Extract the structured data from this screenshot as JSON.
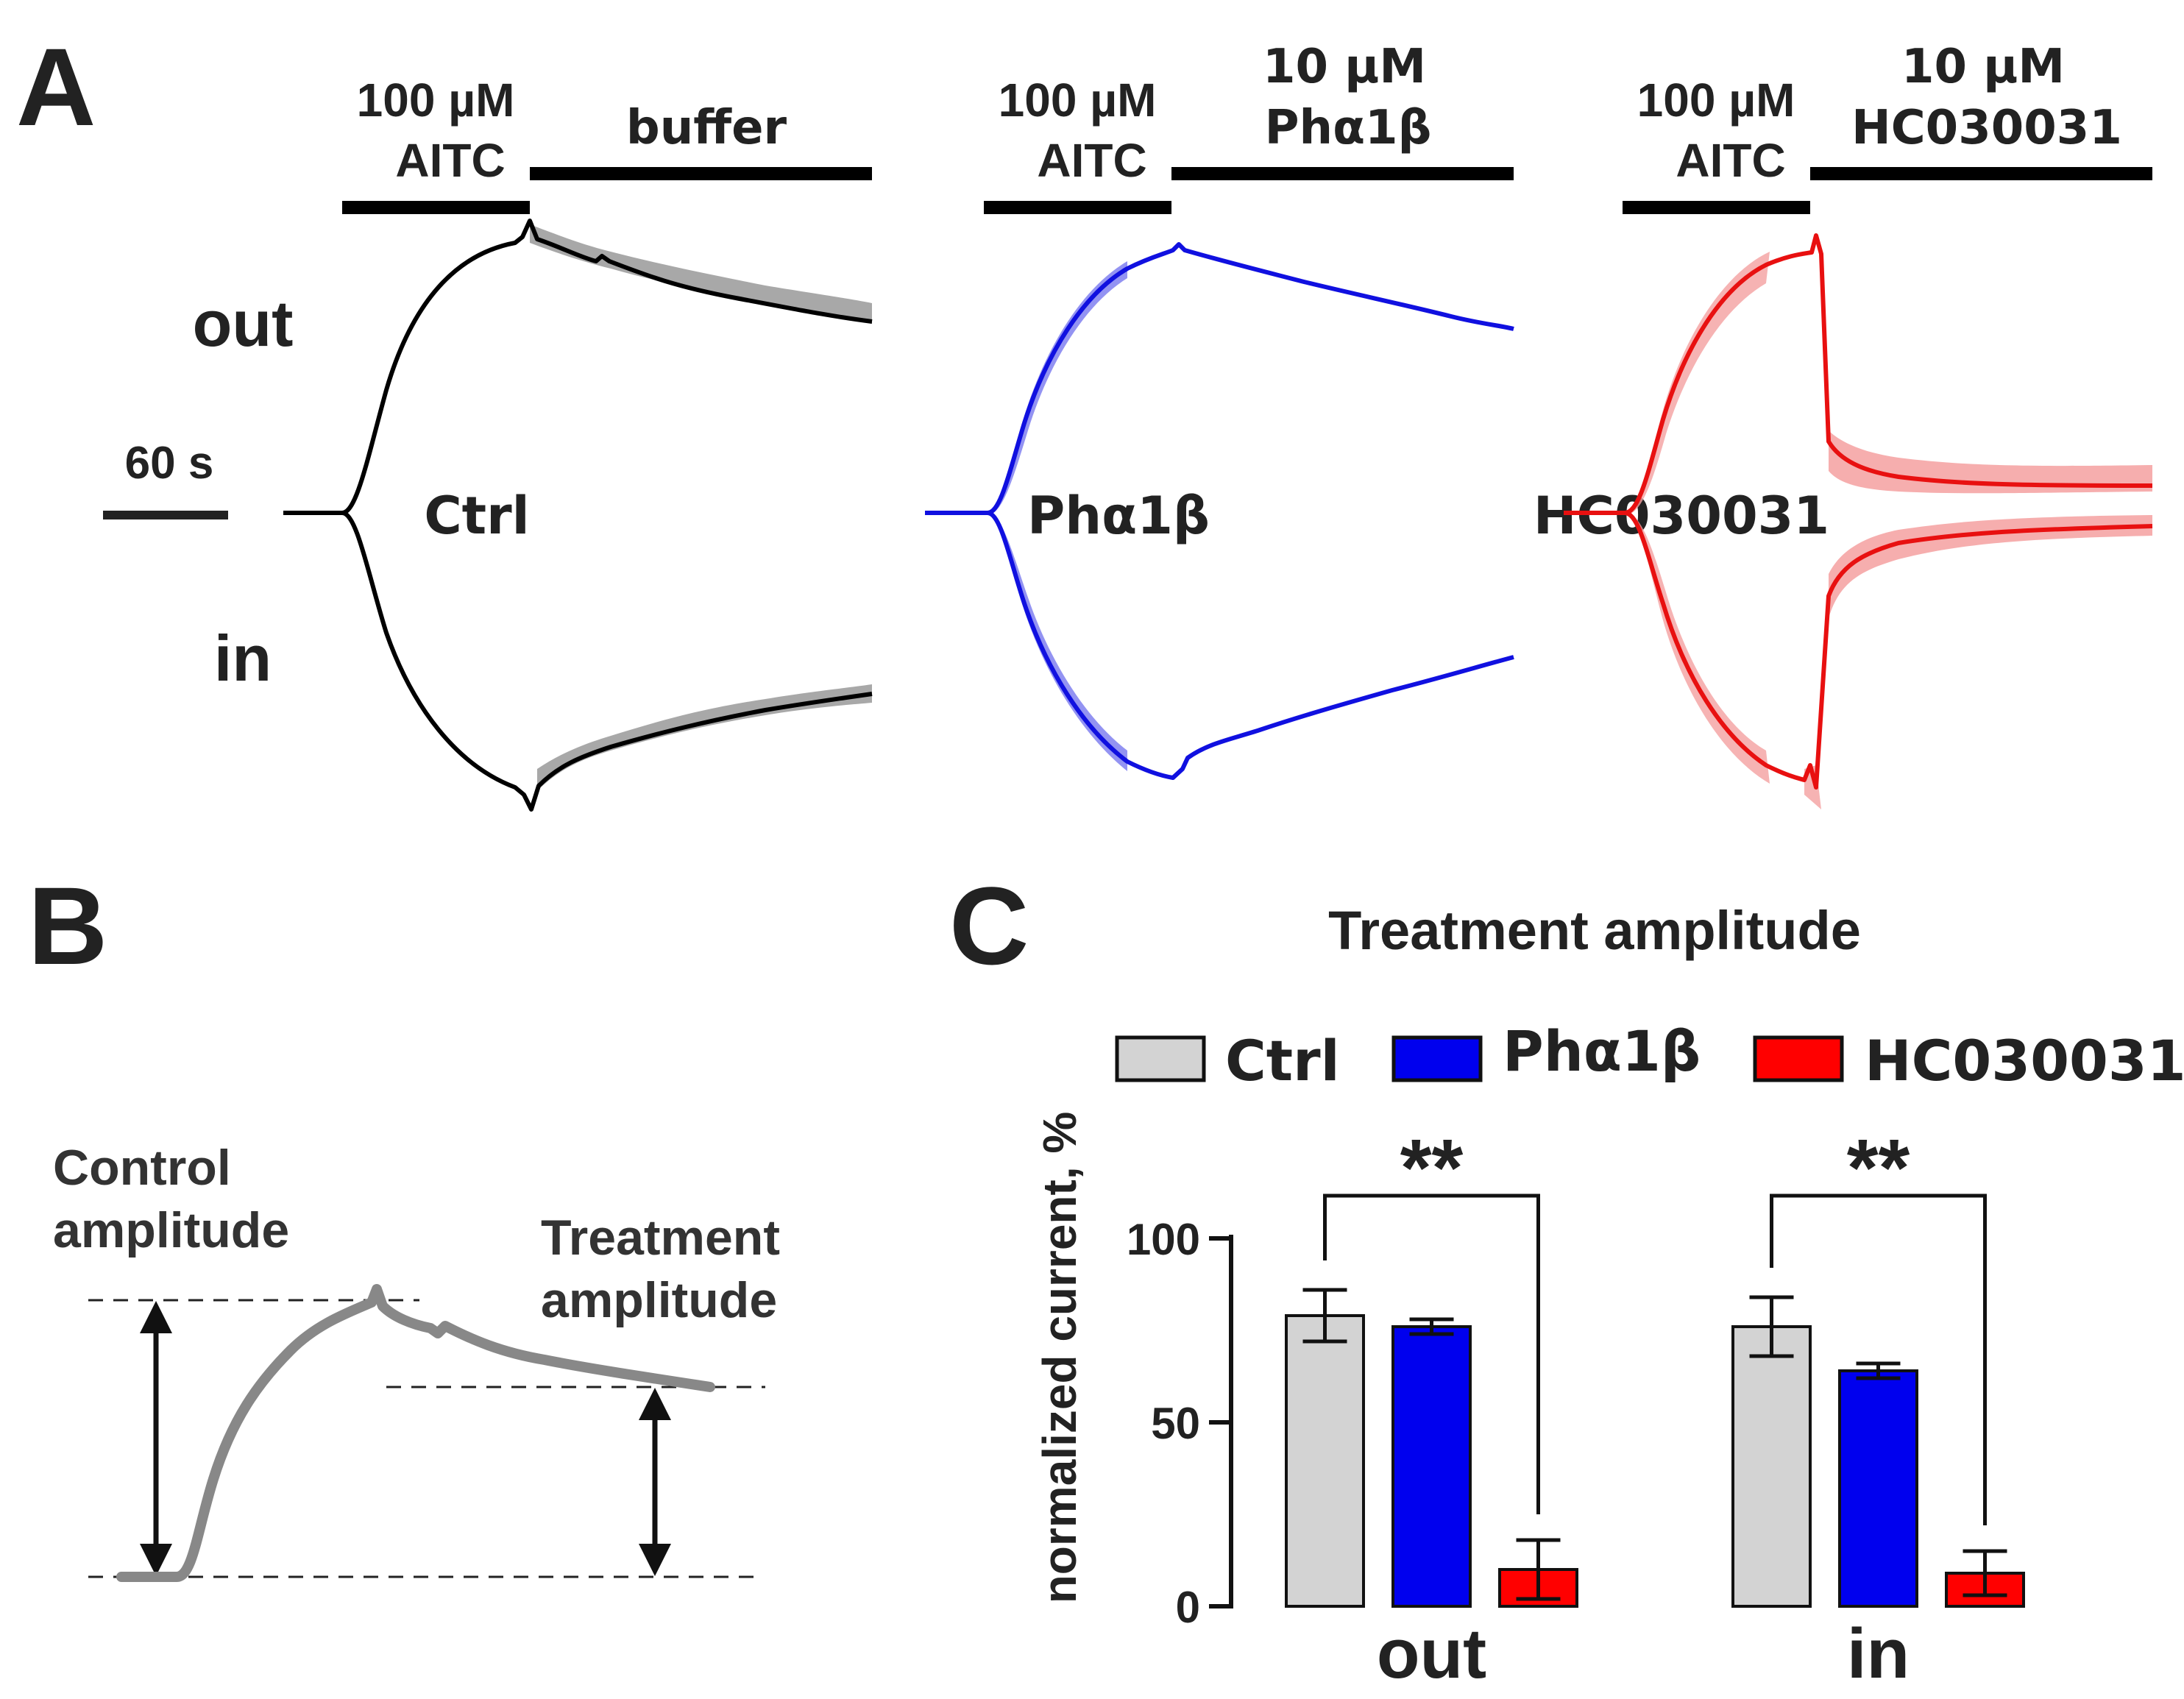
{
  "panel_labels": {
    "a": "A",
    "b": "B",
    "c": "C"
  },
  "panel_a": {
    "scale_bar_label": "60 s",
    "out_label": "out",
    "in_label": "in",
    "traces": [
      {
        "name": "Ctrl",
        "color": "#000000",
        "band_color": "#999999",
        "drug1_label_line1": "100 µM",
        "drug1_label_line2": "AITC",
        "drug2_label_line1": "",
        "drug2_label_line2": "buffer"
      },
      {
        "name": "Phα1β",
        "color": "#1010e0",
        "band_color": "#8080f0",
        "drug1_label_line1": "100 µM",
        "drug1_label_line2": "AITC",
        "drug2_label_line1": "10 µM",
        "drug2_label_line2": "Phα1β"
      },
      {
        "name": "HC030031",
        "color": "#e81010",
        "band_color": "#f4a0a0",
        "drug1_label_line1": "100 µM",
        "drug1_label_line2": "AITC",
        "drug2_label_line1": "10 µM",
        "drug2_label_line2": "HC030031"
      }
    ]
  },
  "panel_b": {
    "control_label_line1": "Control",
    "control_label_line2": "amplitude",
    "treatment_label_line1": "Treatment",
    "treatment_label_line2": "amplitude",
    "trace_color": "#888888"
  },
  "chart_data": {
    "type": "bar",
    "title": "Treatment amplitude",
    "xlabel": "",
    "ylabel": "normalized current, %",
    "ylim": [
      0,
      100
    ],
    "yticks": [
      0,
      50,
      100
    ],
    "categories": [
      "out",
      "in"
    ],
    "series": [
      {
        "name": "Ctrl",
        "color": "#d3d3d3",
        "values": [
          79,
          76
        ],
        "errors": [
          7,
          8
        ]
      },
      {
        "name": "Phα1β",
        "color": "#0000ee",
        "values": [
          76,
          64
        ],
        "errors": [
          2,
          2
        ]
      },
      {
        "name": "HC030031",
        "color": "#ff0000",
        "values": [
          10,
          9
        ],
        "errors": [
          8,
          6
        ]
      }
    ],
    "significance": [
      {
        "category": "out",
        "between": [
          "Ctrl",
          "HC030031"
        ],
        "label": "**"
      },
      {
        "category": "in",
        "between": [
          "Ctrl",
          "HC030031"
        ],
        "label": "**"
      }
    ],
    "legend_position": "top"
  }
}
